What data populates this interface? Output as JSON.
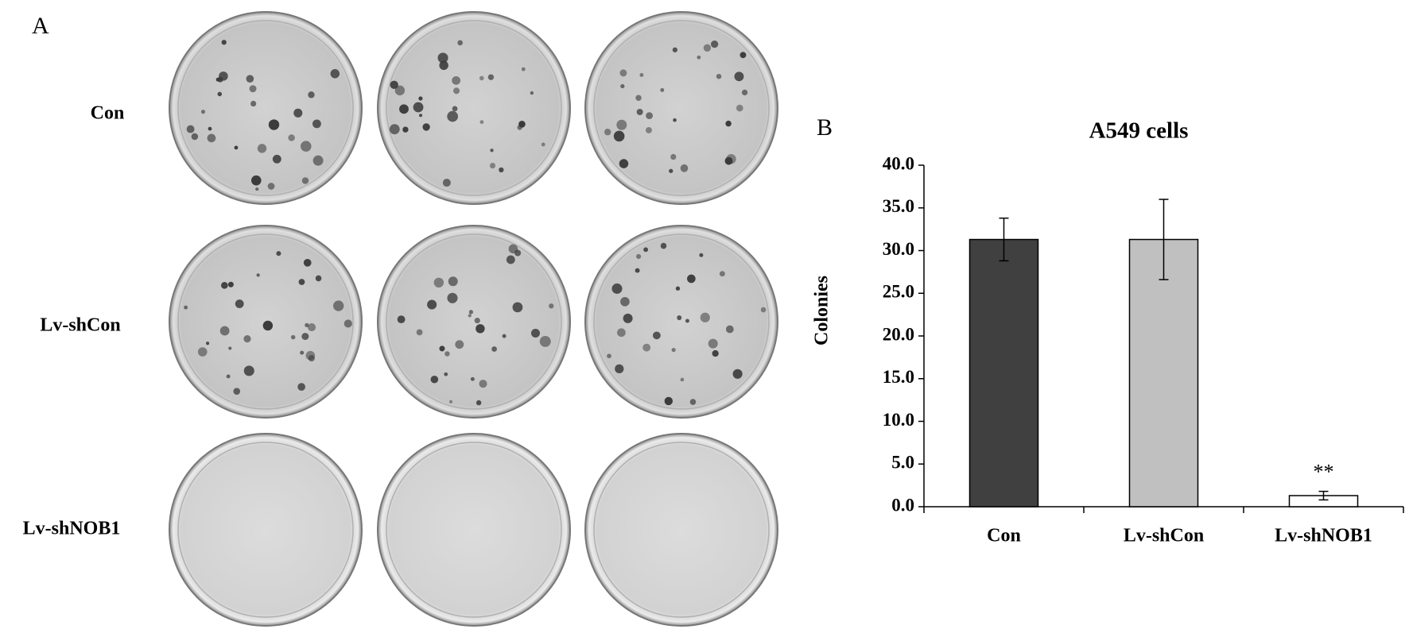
{
  "panel_a": {
    "label": "A",
    "rows": [
      "Con",
      "Lv-shCon",
      "Lv-shNOB1"
    ]
  },
  "panel_b_label": "B",
  "chart_data": {
    "type": "bar",
    "title": "A549 cells",
    "y_label": "Colonies",
    "categories": [
      "Con",
      "Lv-shCon",
      "Lv-shNOB1"
    ],
    "values": [
      31.3,
      31.3,
      1.3
    ],
    "errors": [
      2.5,
      4.7,
      0.5
    ],
    "colors": [
      "#404040",
      "#c0c0c0",
      "#ffffff"
    ],
    "annotation": "**",
    "ylim": [
      0,
      40
    ],
    "yticks": [
      {
        "value": 0,
        "label": "0.0"
      },
      {
        "value": 5,
        "label": "5.0"
      },
      {
        "value": 10,
        "label": "10.0"
      },
      {
        "value": 15,
        "label": "15.0"
      },
      {
        "value": 20,
        "label": "20.0"
      },
      {
        "value": 25,
        "label": "25.0"
      },
      {
        "value": 30,
        "label": "30.0"
      },
      {
        "value": 35,
        "label": "35.0"
      },
      {
        "value": 40,
        "label": "40.0"
      }
    ],
    "grid": false
  }
}
